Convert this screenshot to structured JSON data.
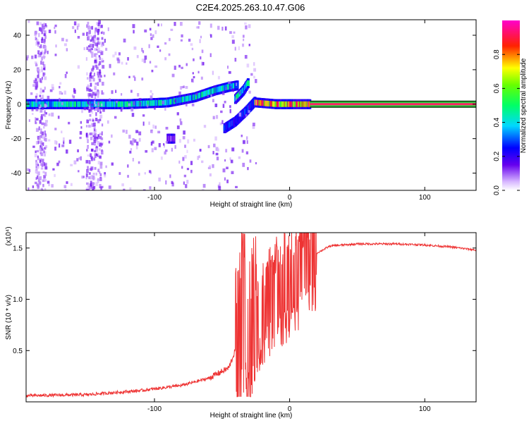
{
  "title": "C2E4.2025.263.10.47.G06",
  "colors": {
    "snr_line": "#ee3333",
    "axis": "#000000",
    "background": "#ffffff"
  },
  "chart_data": [
    {
      "type": "heatmap",
      "name": "spectrogram",
      "xlabel": "Height of straight line (km)",
      "ylabel": "Frequency (Hz)",
      "xlim": [
        -195,
        138
      ],
      "ylim": [
        -50,
        49
      ],
      "xticks": [
        -100,
        0,
        100
      ],
      "yticks": [
        -40,
        -20,
        0,
        20,
        40
      ],
      "colorbar": {
        "label": "Normalized spectral amplitude",
        "range": [
          0,
          1
        ],
        "ticks": [
          "0.0",
          "0.2",
          "0.4",
          "0.6",
          "0.8"
        ],
        "colormap": "rainbow (white-violet → blue → cyan → green → yellow → red → magenta)"
      },
      "ridges": [
        {
          "name": "main tone",
          "points": [
            [
              -195,
              0
            ],
            [
              -120,
              0
            ],
            [
              -90,
              1
            ],
            [
              -70,
              4
            ],
            [
              -55,
              8
            ],
            [
              -45,
              10
            ],
            [
              -38,
              11
            ]
          ],
          "amplitude": 0.5
        },
        {
          "name": "rising branch",
          "points": [
            [
              -40,
              3
            ],
            [
              -34,
              8
            ],
            [
              -30,
              13
            ]
          ],
          "amplitude": 0.5
        },
        {
          "name": "descending branch",
          "points": [
            [
              -48,
              -14
            ],
            [
              -40,
              -10
            ],
            [
              -32,
              -4
            ],
            [
              -25,
              2
            ]
          ],
          "amplitude": 0.3
        },
        {
          "name": "locked carrier",
          "points": [
            [
              -25,
              1
            ],
            [
              -10,
              0
            ],
            [
              10,
              0
            ],
            [
              138,
              0
            ]
          ],
          "amplitude": 0.95
        },
        {
          "name": "weak side tone",
          "points": [
            [
              -90,
              -20
            ],
            [
              -85,
              -20
            ]
          ],
          "amplitude": 0.15
        }
      ]
    },
    {
      "type": "line",
      "name": "snr",
      "xlabel": "Height of straight line (km)",
      "ylabel": "SNR (10 * v/v)",
      "y_multiplier": "(x10⁴)",
      "xlim": [
        -195,
        138
      ],
      "ylim": [
        0,
        1.65
      ],
      "xticks": [
        -100,
        0,
        100
      ],
      "yticks": [
        0.5,
        1.0,
        1.5
      ],
      "ytick_labels": [
        "0.5",
        "1.0",
        "1.5"
      ],
      "series": [
        {
          "name": "SNR",
          "envelope_x": [
            -195,
            -150,
            -110,
            -80,
            -60,
            -45,
            -38,
            -35,
            -30,
            -25,
            -20,
            -10,
            0,
            10,
            20,
            30,
            50,
            80,
            100,
            120,
            138
          ],
          "envelope_y": [
            0.03,
            0.04,
            0.08,
            0.13,
            0.2,
            0.3,
            0.55,
            0.9,
            0.6,
            0.8,
            0.9,
            1.05,
            1.15,
            1.3,
            1.45,
            1.52,
            1.54,
            1.54,
            1.53,
            1.51,
            1.48
          ]
        }
      ]
    }
  ]
}
